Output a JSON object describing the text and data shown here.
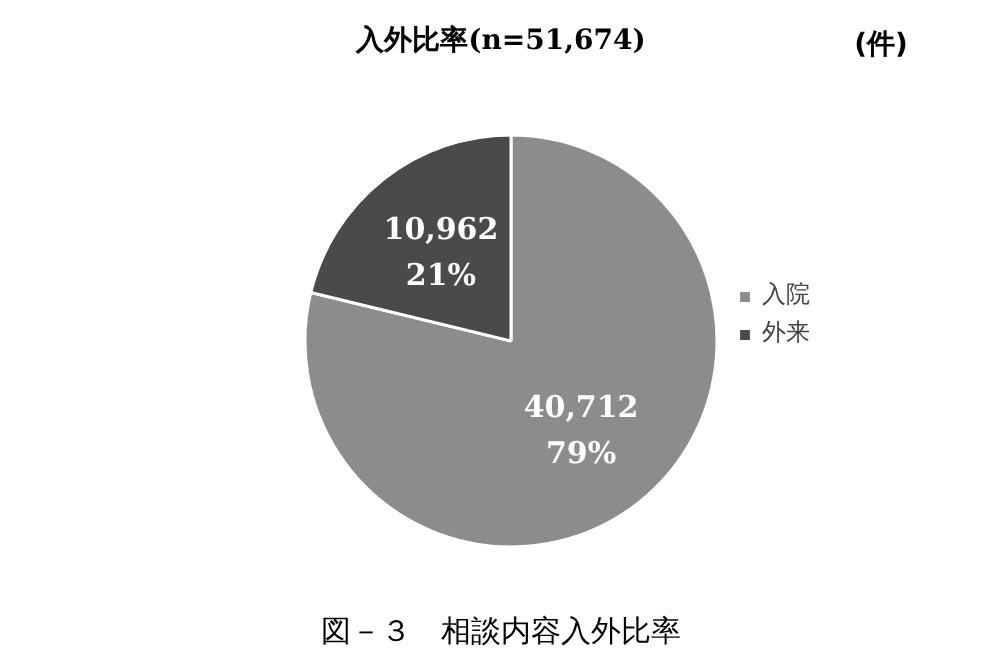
{
  "chart_data": {
    "type": "pie",
    "title": "入外比率(n=51,674)",
    "categories": [
      "入院",
      "外来"
    ],
    "values": [
      40712,
      10962
    ],
    "colors": [
      "#8c8c8c",
      "#4a4a4a"
    ],
    "value_labels": [
      "40,712\n79%",
      "10,962\n21%"
    ],
    "legend": "right",
    "annotations": [
      "(件)",
      "図－３　相談内容入外比率"
    ]
  }
}
